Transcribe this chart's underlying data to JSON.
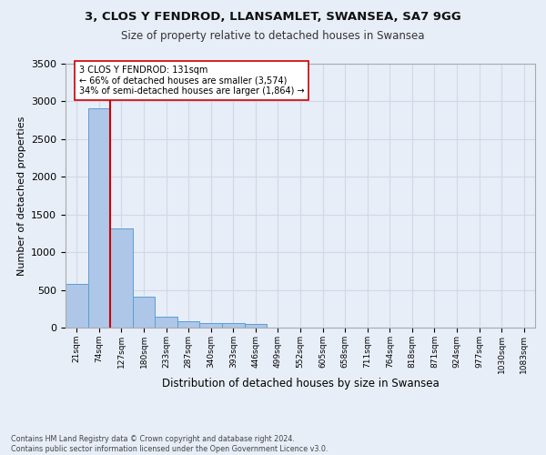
{
  "title_line1": "3, CLOS Y FENDROD, LLANSAMLET, SWANSEA, SA7 9GG",
  "title_line2": "Size of property relative to detached houses in Swansea",
  "xlabel": "Distribution of detached houses by size in Swansea",
  "ylabel": "Number of detached properties",
  "categories": [
    "21sqm",
    "74sqm",
    "127sqm",
    "180sqm",
    "233sqm",
    "287sqm",
    "340sqm",
    "393sqm",
    "446sqm",
    "499sqm",
    "552sqm",
    "605sqm",
    "658sqm",
    "711sqm",
    "764sqm",
    "818sqm",
    "871sqm",
    "924sqm",
    "977sqm",
    "1030sqm",
    "1083sqm"
  ],
  "values": [
    575,
    2910,
    1315,
    415,
    150,
    85,
    60,
    55,
    50,
    0,
    0,
    0,
    0,
    0,
    0,
    0,
    0,
    0,
    0,
    0,
    0
  ],
  "bar_color": "#aec6e8",
  "bar_edge_color": "#5a9fd4",
  "vline_color": "#cc0000",
  "annotation_text": "3 CLOS Y FENDROD: 131sqm\n← 66% of detached houses are smaller (3,574)\n34% of semi-detached houses are larger (1,864) →",
  "annotation_box_color": "#ffffff",
  "annotation_box_edgecolor": "#cc0000",
  "ylim": [
    0,
    3500
  ],
  "yticks": [
    0,
    500,
    1000,
    1500,
    2000,
    2500,
    3000,
    3500
  ],
  "grid_color": "#d0d8e8",
  "background_color": "#e8eef8",
  "footnote": "Contains HM Land Registry data © Crown copyright and database right 2024.\nContains public sector information licensed under the Open Government Licence v3.0."
}
